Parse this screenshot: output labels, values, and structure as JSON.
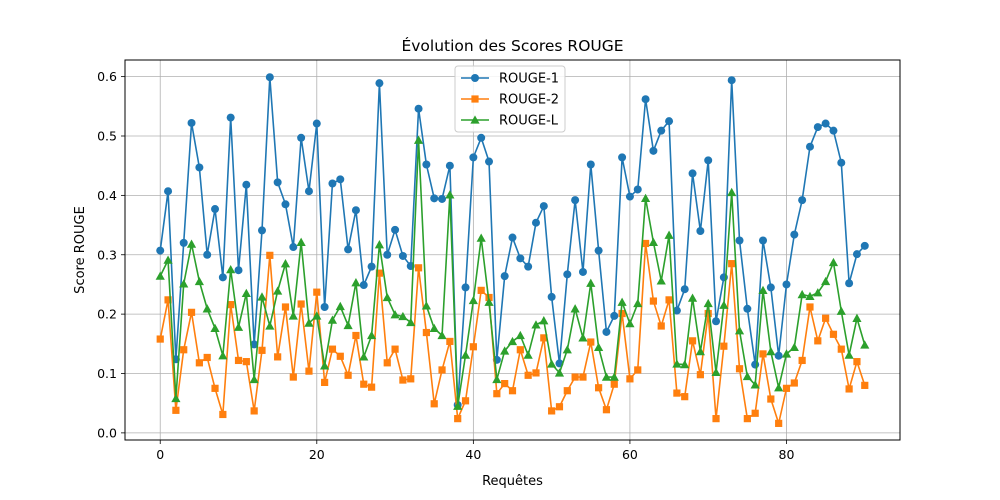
{
  "chart_data": {
    "type": "line",
    "title": "Évolution des Scores ROUGE",
    "xlabel": "Requêtes",
    "ylabel": "Score ROUGE",
    "xlim": [
      -4.5,
      94.5
    ],
    "ylim": [
      -0.012,
      0.628
    ],
    "xticks": [
      0,
      20,
      40,
      60,
      80
    ],
    "xtick_labels": [
      "0",
      "20",
      "40",
      "60",
      "80"
    ],
    "yticks": [
      0.0,
      0.1,
      0.2,
      0.3,
      0.4,
      0.5,
      0.6
    ],
    "ytick_labels": [
      "0.0",
      "0.1",
      "0.2",
      "0.3",
      "0.4",
      "0.5",
      "0.6"
    ],
    "grid": true,
    "legend_position": "top-center",
    "x": [
      0,
      1,
      2,
      3,
      4,
      5,
      6,
      7,
      8,
      9,
      10,
      11,
      12,
      13,
      14,
      15,
      16,
      17,
      18,
      19,
      20,
      21,
      22,
      23,
      24,
      25,
      26,
      27,
      28,
      29,
      30,
      31,
      32,
      33,
      34,
      35,
      36,
      37,
      38,
      39,
      40,
      41,
      42,
      43,
      44,
      45,
      46,
      47,
      48,
      49,
      50,
      51,
      52,
      53,
      54,
      55,
      56,
      57,
      58,
      59,
      60,
      61,
      62,
      63,
      64,
      65,
      66,
      67,
      68,
      69,
      70,
      71,
      72,
      73,
      74,
      75,
      76,
      77,
      78,
      79,
      80,
      81,
      82,
      83,
      84,
      85,
      86,
      87,
      88,
      89,
      90
    ],
    "series": [
      {
        "name": "ROUGE-1",
        "color": "#1f77b4",
        "marker": "circle",
        "values": [
          0.307,
          0.407,
          0.124,
          0.32,
          0.522,
          0.447,
          0.3,
          0.377,
          0.262,
          0.531,
          0.274,
          0.418,
          0.149,
          0.341,
          0.599,
          0.422,
          0.385,
          0.313,
          0.497,
          0.407,
          0.521,
          0.212,
          0.42,
          0.427,
          0.309,
          0.375,
          0.249,
          0.28,
          0.589,
          0.3,
          0.342,
          0.298,
          0.281,
          0.546,
          0.452,
          0.395,
          0.394,
          0.45,
          0.047,
          0.245,
          0.464,
          0.497,
          0.457,
          0.123,
          0.264,
          0.329,
          0.294,
          0.28,
          0.354,
          0.382,
          0.229,
          0.117,
          0.267,
          0.392,
          0.271,
          0.452,
          0.307,
          0.17,
          0.197,
          0.464,
          0.398,
          0.41,
          0.562,
          0.475,
          0.509,
          0.525,
          0.206,
          0.242,
          0.437,
          0.34,
          0.459,
          0.188,
          0.262,
          0.594,
          0.324,
          0.209,
          0.115,
          0.324,
          0.245,
          0.13,
          0.25,
          0.334,
          0.392,
          0.482,
          0.515,
          0.521,
          0.509,
          0.455,
          0.252,
          0.301,
          0.315
        ]
      },
      {
        "name": "ROUGE-2",
        "color": "#ff7f0e",
        "marker": "square",
        "values": [
          0.158,
          0.224,
          0.038,
          0.14,
          0.203,
          0.118,
          0.127,
          0.075,
          0.031,
          0.216,
          0.122,
          0.12,
          0.037,
          0.139,
          0.299,
          0.128,
          0.212,
          0.094,
          0.217,
          0.104,
          0.237,
          0.085,
          0.141,
          0.129,
          0.097,
          0.164,
          0.082,
          0.077,
          0.269,
          0.118,
          0.141,
          0.089,
          0.091,
          0.278,
          0.169,
          0.049,
          0.106,
          0.154,
          0.024,
          0.054,
          0.145,
          0.24,
          0.228,
          0.066,
          0.083,
          0.071,
          0.14,
          0.097,
          0.101,
          0.16,
          0.037,
          0.044,
          0.071,
          0.094,
          0.094,
          0.153,
          0.076,
          0.039,
          0.082,
          0.201,
          0.091,
          0.106,
          0.319,
          0.222,
          0.18,
          0.224,
          0.067,
          0.061,
          0.155,
          0.098,
          0.201,
          0.024,
          0.146,
          0.285,
          0.108,
          0.024,
          0.033,
          0.133,
          0.057,
          0.016,
          0.075,
          0.084,
          0.122,
          0.212,
          0.155,
          0.193,
          0.166,
          0.141,
          0.074,
          0.12,
          0.08
        ]
      },
      {
        "name": "ROUGE-L",
        "color": "#2ca02c",
        "marker": "triangle",
        "values": [
          0.264,
          0.291,
          0.058,
          0.251,
          0.318,
          0.255,
          0.209,
          0.176,
          0.13,
          0.275,
          0.178,
          0.235,
          0.09,
          0.229,
          0.18,
          0.239,
          0.285,
          0.197,
          0.321,
          0.185,
          0.197,
          0.113,
          0.19,
          0.213,
          0.181,
          0.253,
          0.128,
          0.164,
          0.317,
          0.228,
          0.199,
          0.196,
          0.186,
          0.493,
          0.214,
          0.176,
          0.164,
          0.401,
          0.045,
          0.131,
          0.223,
          0.328,
          0.22,
          0.09,
          0.138,
          0.154,
          0.164,
          0.131,
          0.182,
          0.189,
          0.116,
          0.101,
          0.14,
          0.209,
          0.16,
          0.252,
          0.144,
          0.094,
          0.094,
          0.22,
          0.184,
          0.218,
          0.395,
          0.321,
          0.256,
          0.333,
          0.116,
          0.115,
          0.227,
          0.137,
          0.218,
          0.102,
          0.215,
          0.405,
          0.172,
          0.095,
          0.081,
          0.24,
          0.137,
          0.076,
          0.133,
          0.144,
          0.233,
          0.23,
          0.236,
          0.255,
          0.287,
          0.205,
          0.131,
          0.193,
          0.148
        ]
      }
    ]
  }
}
